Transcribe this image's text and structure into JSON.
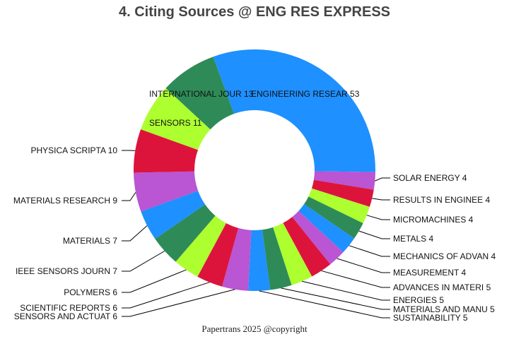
{
  "chart_data": {
    "type": "pie",
    "hole": true,
    "title": "4. Citing Sources @ ENG RES EXPRESS",
    "categories": [
      "ENGINEERING RESEAR",
      "SOLAR ENERGY",
      "RESULTS IN ENGINEE",
      "MICROMACHINES",
      "METALS",
      "MECHANICS OF ADVAN",
      "MEASUREMENT",
      "ADVANCES IN MATERI",
      "ENERGIES",
      "MATERIALS AND MANU",
      "SUSTAINABILITY",
      "SENSORS AND ACTUAT",
      "SCIENTIFIC REPORTS",
      "POLYMERS",
      "IEEE SENSORS JOURN",
      "MATERIALS",
      "MATERIALS RESEARCH",
      "PHYSICA SCRIPTA",
      "SENSORS",
      "INTERNATIONAL JOUR"
    ],
    "values": [
      53,
      4,
      4,
      4,
      4,
      4,
      4,
      5,
      5,
      5,
      5,
      6,
      6,
      6,
      7,
      7,
      9,
      10,
      11,
      13
    ],
    "labels": [
      "ENGINEERING RESEAR 53",
      "SOLAR ENERGY 4",
      "RESULTS IN ENGINEE 4",
      "MICROMACHINES 4",
      "METALS 4",
      "MECHANICS OF ADVAN 4",
      "MEASUREMENT 4",
      "ADVANCES IN MATERI 5",
      "ENERGIES 5",
      "MATERIALS AND MANU 5",
      "SUSTAINABILITY 5",
      "SENSORS AND ACTUAT 6",
      "SCIENTIFIC REPORTS 6",
      "POLYMERS 6",
      "IEEE SENSORS JOURN 7",
      "MATERIALS 7",
      "MATERIALS RESEARCH 9",
      "PHYSICA SCRIPTA 10",
      "SENSORS 11",
      "INTERNATIONAL JOUR 13"
    ],
    "colors": [
      "#1e90ff",
      "#ba55d3",
      "#dc143c",
      "#adff2f",
      "#2e8b57"
    ],
    "direction": "clockwise"
  },
  "footer": "Papertrans 2025 @copyright"
}
